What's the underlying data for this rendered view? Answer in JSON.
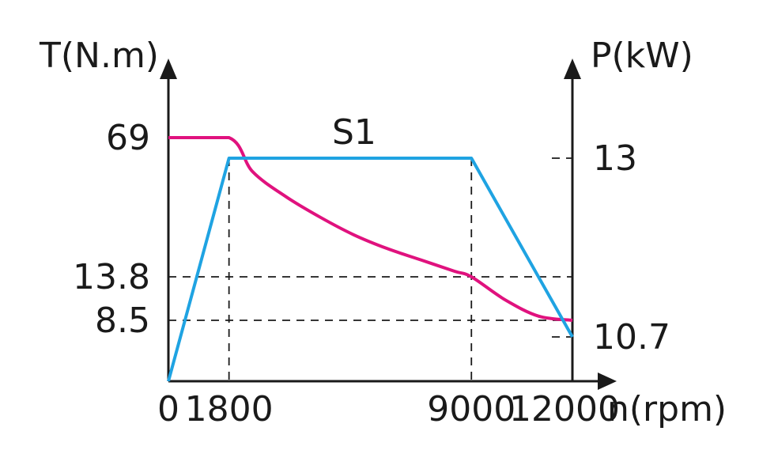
{
  "chart_data": {
    "type": "line",
    "annotation": "S1",
    "x_axis": {
      "label": "n(rpm)",
      "ticks": [
        0,
        1800,
        9000,
        12000
      ],
      "range": [
        0,
        12000
      ]
    },
    "y_left": {
      "label": "T(N.m)",
      "ticks": [
        69,
        13.8,
        8.5
      ]
    },
    "y_right": {
      "label": "P(kW)",
      "ticks": [
        13,
        10.7
      ]
    },
    "series": [
      {
        "color": "#e0127e",
        "axis": "left",
        "x": [
          0,
          1800,
          2500,
          3500,
          4500,
          5500,
          6500,
          7500,
          8500,
          9000,
          10000,
          11000,
          12000
        ],
        "y": [
          69,
          69,
          55.5,
          45.5,
          37.5,
          30.5,
          25,
          20.5,
          16,
          13.8,
          11,
          9,
          8.5
        ]
      },
      {
        "color": "#1fa3e2",
        "axis": "right",
        "x": [
          0,
          1800,
          9000,
          12000
        ],
        "y": [
          0,
          13,
          13,
          10.7
        ]
      }
    ],
    "colors": {
      "axis": "#1a1a1a",
      "torque": "#e0127e",
      "power": "#1fa3e2"
    }
  }
}
